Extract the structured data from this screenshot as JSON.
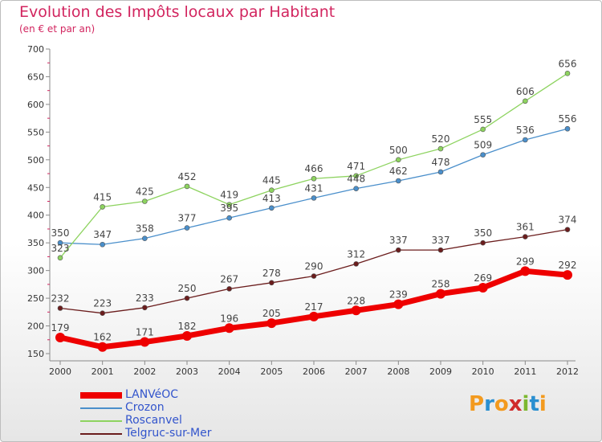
{
  "header": {
    "title": "Evolution des Impôts locaux par Habitant",
    "subtitle": "(en € et par an)"
  },
  "logo": {
    "letters": [
      "P",
      "r",
      "o",
      "x",
      "i",
      "t",
      "i"
    ],
    "colors": [
      "#f39a1e",
      "#2a8fd0",
      "#f39a1e",
      "#d02a2a",
      "#7cb82f",
      "#2a8fd0",
      "#f39a1e"
    ]
  },
  "chart_data": {
    "type": "line",
    "x": [
      "2000",
      "2001",
      "2002",
      "2003",
      "2004",
      "2005",
      "2006",
      "2007",
      "2008",
      "2009",
      "2010",
      "2011",
      "2012"
    ],
    "ylim": [
      150,
      700
    ],
    "yticks": [
      150,
      200,
      250,
      300,
      350,
      400,
      450,
      500,
      550,
      600,
      650,
      700
    ],
    "grid": false,
    "legend_position": "bottom-left",
    "series": [
      {
        "name": "LANVéOC",
        "color": "#ee0000",
        "emphasis": true,
        "values": [
          179,
          162,
          171,
          182,
          196,
          205,
          217,
          228,
          239,
          258,
          269,
          299,
          292
        ]
      },
      {
        "name": "Crozon",
        "color": "#4a8fcb",
        "values": [
          350,
          347,
          358,
          377,
          395,
          413,
          431,
          448,
          462,
          478,
          509,
          536,
          556
        ]
      },
      {
        "name": "Roscanvel",
        "color": "#8dd35f",
        "values": [
          323,
          415,
          425,
          452,
          419,
          445,
          466,
          471,
          500,
          520,
          555,
          606,
          656
        ]
      },
      {
        "name": "Telgruc-sur-Mer",
        "color": "#6b1d1d",
        "values": [
          232,
          223,
          233,
          250,
          267,
          278,
          290,
          312,
          337,
          337,
          350,
          361,
          374
        ]
      }
    ]
  }
}
